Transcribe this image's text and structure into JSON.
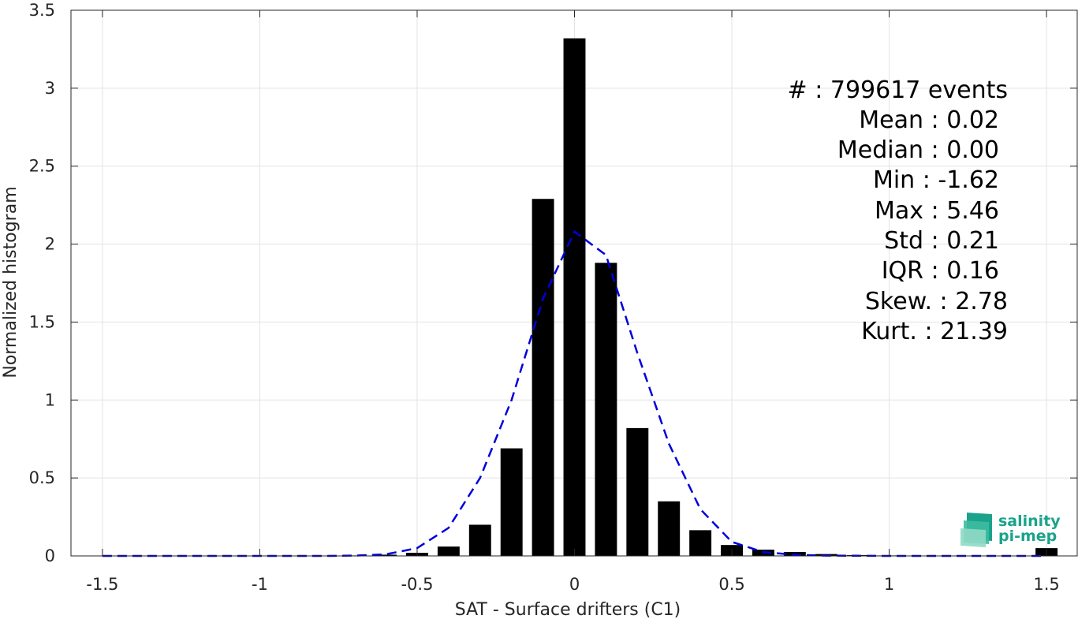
{
  "chart_data": {
    "type": "bar",
    "xlabel": "SAT - Surface drifters (C1)",
    "ylabel": "Normalized histogram",
    "xlim": [
      -1.6,
      1.6
    ],
    "ylim": [
      0,
      3.5
    ],
    "x_ticks": [
      -1.5,
      -1,
      -0.5,
      0,
      0.5,
      1,
      1.5
    ],
    "x_tick_labels": [
      "-1.5",
      "-1",
      "-0.5",
      "0",
      "0.5",
      "1",
      "1.5"
    ],
    "y_ticks": [
      0,
      0.5,
      1,
      1.5,
      2,
      2.5,
      3,
      3.5
    ],
    "y_tick_labels": [
      "0",
      "0.5",
      "1",
      "1.5",
      "2",
      "2.5",
      "3",
      "3.5"
    ],
    "grid": true,
    "bar_color": "#000000",
    "bars": {
      "x": [
        -1.5,
        -1.4,
        -1.3,
        -1.2,
        -1.1,
        -1.0,
        -0.9,
        -0.8,
        -0.7,
        -0.6,
        -0.5,
        -0.4,
        -0.3,
        -0.2,
        -0.1,
        0.0,
        0.1,
        0.2,
        0.3,
        0.4,
        0.5,
        0.6,
        0.7,
        0.8,
        0.9,
        1.0,
        1.1,
        1.2,
        1.3,
        1.4,
        1.5
      ],
      "values": [
        0,
        0,
        0,
        0,
        0,
        0,
        0,
        0,
        0.003,
        0.008,
        0.02,
        0.06,
        0.2,
        0.69,
        2.29,
        3.32,
        1.88,
        0.82,
        0.35,
        0.165,
        0.07,
        0.04,
        0.025,
        0.012,
        0.005,
        0.003,
        0.002,
        0.001,
        0.001,
        0.001,
        0.05
      ]
    },
    "fit_curve": {
      "style": "dashed",
      "color": "#0000dd",
      "x": [
        -1.5,
        -1.4,
        -1.3,
        -1.2,
        -1.1,
        -1.0,
        -0.9,
        -0.8,
        -0.7,
        -0.6,
        -0.5,
        -0.4,
        -0.3,
        -0.2,
        -0.1,
        0.0,
        0.1,
        0.2,
        0.3,
        0.4,
        0.5,
        0.6,
        0.7,
        0.8,
        0.9,
        1.0,
        1.1,
        1.2,
        1.3,
        1.4,
        1.5
      ],
      "y": [
        0,
        0,
        0,
        0,
        0,
        0,
        0,
        0,
        0.002,
        0.01,
        0.05,
        0.18,
        0.5,
        1.0,
        1.65,
        2.08,
        1.93,
        1.3,
        0.72,
        0.3,
        0.09,
        0.025,
        0.007,
        0.002,
        0.001,
        0,
        0,
        0,
        0,
        0,
        0
      ]
    },
    "stats_text": [
      "#   : 799617 events",
      "Mean : 0.02",
      "Median : 0.00",
      "Min : -1.62",
      "Max : 5.46",
      "Std : 0.21",
      "IQR : 0.16",
      "Skew. : 2.78",
      "Kurt. : 21.39"
    ]
  },
  "logo": {
    "line1": "salinity",
    "line2": "pi-mep",
    "color": "#1aa38a"
  }
}
